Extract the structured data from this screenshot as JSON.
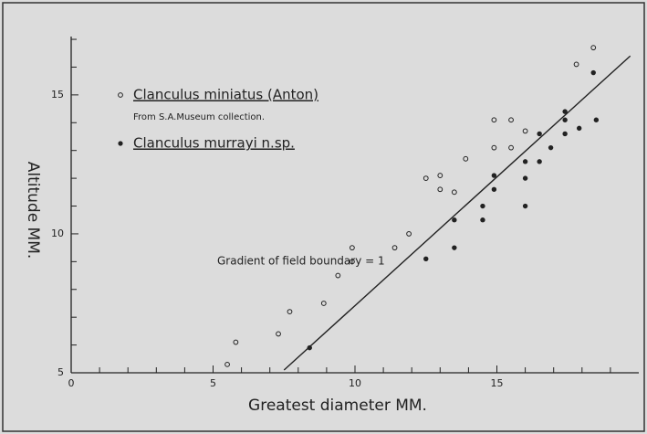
{
  "chart_data": {
    "type": "scatter",
    "x_label": "Greatest diameter MM.",
    "y_label": "Altitude MM.",
    "xlim": [
      0,
      20
    ],
    "ylim": [
      5,
      17.1
    ],
    "xticks": [
      0,
      5,
      10,
      15
    ],
    "yticks": [
      5,
      10,
      15
    ],
    "xminorticks": [
      1,
      2,
      3,
      4,
      6,
      7,
      8,
      9,
      11,
      12,
      13,
      14,
      16,
      17,
      18,
      19
    ],
    "yminorticks": [
      6,
      7,
      8,
      9,
      11,
      12,
      13,
      14,
      16,
      17
    ],
    "series": [
      {
        "name": "Clanculus miniatus (Anton)",
        "note": "From S.A.Museum collection.",
        "marker": "open",
        "color": "#222222",
        "x": [
          5.5,
          5.8,
          7.3,
          7.7,
          8.9,
          9.4,
          9.9,
          9.9,
          11.4,
          11.9,
          12.5,
          13.0,
          13.0,
          13.5,
          13.9,
          14.9,
          14.9,
          15.5,
          15.5,
          16.0,
          17.8,
          18.4
        ],
        "values": [
          5.3,
          6.1,
          6.4,
          7.2,
          7.5,
          8.5,
          9.0,
          9.5,
          9.5,
          10.0,
          12.0,
          12.1,
          11.6,
          11.5,
          12.7,
          14.1,
          13.1,
          14.1,
          13.1,
          13.7,
          16.1,
          16.7
        ]
      },
      {
        "name": "Clanculus murrayi n.sp.",
        "marker": "filled",
        "color": "#222222",
        "x": [
          8.4,
          12.5,
          13.5,
          13.5,
          14.5,
          14.5,
          14.9,
          14.9,
          16.0,
          16.0,
          16.0,
          16.5,
          16.5,
          16.9,
          17.4,
          17.4,
          17.4,
          17.9,
          18.4,
          18.5
        ],
        "values": [
          5.9,
          9.1,
          10.5,
          9.5,
          11.0,
          10.5,
          12.1,
          11.6,
          12.6,
          12.0,
          11.0,
          13.6,
          12.6,
          13.1,
          14.4,
          14.1,
          13.6,
          13.8,
          15.8,
          14.1
        ]
      }
    ],
    "boundary_line": {
      "x": [
        7.5,
        19.7
      ],
      "y": [
        5.1,
        16.4
      ]
    },
    "annotation": "Gradient of field boundary = 1"
  }
}
